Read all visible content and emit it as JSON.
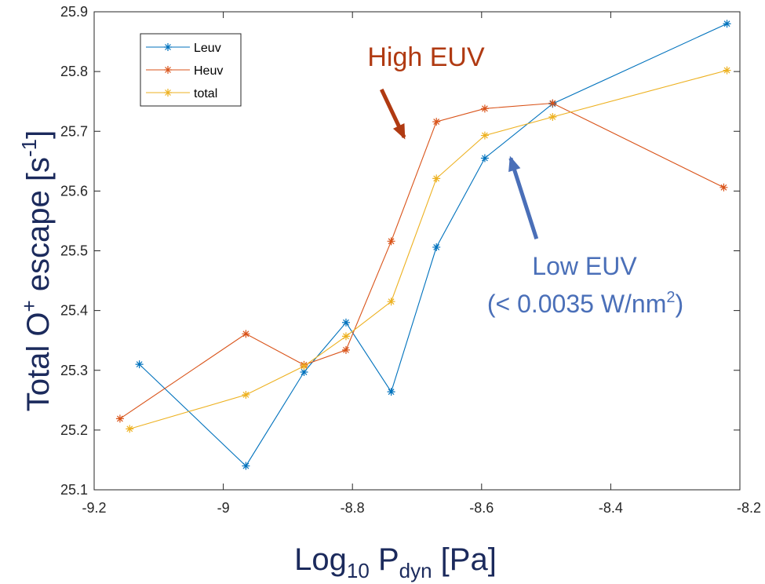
{
  "chart_data": {
    "type": "line",
    "title": "",
    "xlabel": {
      "main": "Log",
      "sub1": "10",
      "mid": " P",
      "sub2": "dyn",
      "tail": " [Pa]"
    },
    "ylabel": {
      "main": "Total O",
      "sup1": "+",
      "mid": " escape [s",
      "sup2": "-1",
      "tail": "]"
    },
    "xlim": [
      -9.2,
      -8.2
    ],
    "ylim": [
      25.1,
      25.9
    ],
    "xticks": [
      -9.2,
      -9,
      -8.8,
      -8.6,
      -8.4,
      -8.2
    ],
    "xtick_labels": [
      "-9.2",
      "-9",
      "-8.8",
      "-8.6",
      "-8.4",
      "-8.2"
    ],
    "yticks": [
      25.1,
      25.2,
      25.3,
      25.4,
      25.5,
      25.6,
      25.7,
      25.8,
      25.9
    ],
    "ytick_labels": [
      "25.1",
      "25.2",
      "25.3",
      "25.4",
      "25.5",
      "25.6",
      "25.7",
      "25.8",
      "25.9"
    ],
    "grid": false,
    "legend_position": "top-left",
    "series": [
      {
        "name": "Leuv",
        "color": "#0072BD",
        "x": [
          -9.13,
          -8.965,
          -8.875,
          -8.81,
          -8.74,
          -8.67,
          -8.595,
          -8.49,
          -8.22
        ],
        "y": [
          25.31,
          25.14,
          25.297,
          25.38,
          25.264,
          25.506,
          25.655,
          25.746,
          25.88
        ]
      },
      {
        "name": "Heuv",
        "color": "#D95319",
        "x": [
          -9.16,
          -8.965,
          -8.875,
          -8.81,
          -8.74,
          -8.67,
          -8.595,
          -8.49,
          -8.225
        ],
        "y": [
          25.219,
          25.361,
          25.309,
          25.334,
          25.516,
          25.716,
          25.738,
          25.747,
          25.606
        ]
      },
      {
        "name": "total",
        "color": "#EDB120",
        "x": [
          -9.145,
          -8.965,
          -8.875,
          -8.81,
          -8.74,
          -8.67,
          -8.595,
          -8.49,
          -8.22
        ],
        "y": [
          25.202,
          25.259,
          25.307,
          25.357,
          25.415,
          25.621,
          25.693,
          25.724,
          25.802
        ]
      }
    ],
    "annotations": [
      {
        "id": "high-euv",
        "lines": [
          "High EUV"
        ],
        "color": "#B03A12",
        "arrow_from": [
          -8.755,
          25.77
        ],
        "arrow_to": [
          -8.72,
          25.69
        ]
      },
      {
        "id": "low-euv",
        "lines": [
          "Low EUV",
          "(< 0.0035 W/nm",
          "2",
          ")"
        ],
        "color": "#4A6FB8",
        "arrow_from": [
          -8.515,
          25.52
        ],
        "arrow_to": [
          -8.555,
          25.655
        ]
      }
    ]
  }
}
